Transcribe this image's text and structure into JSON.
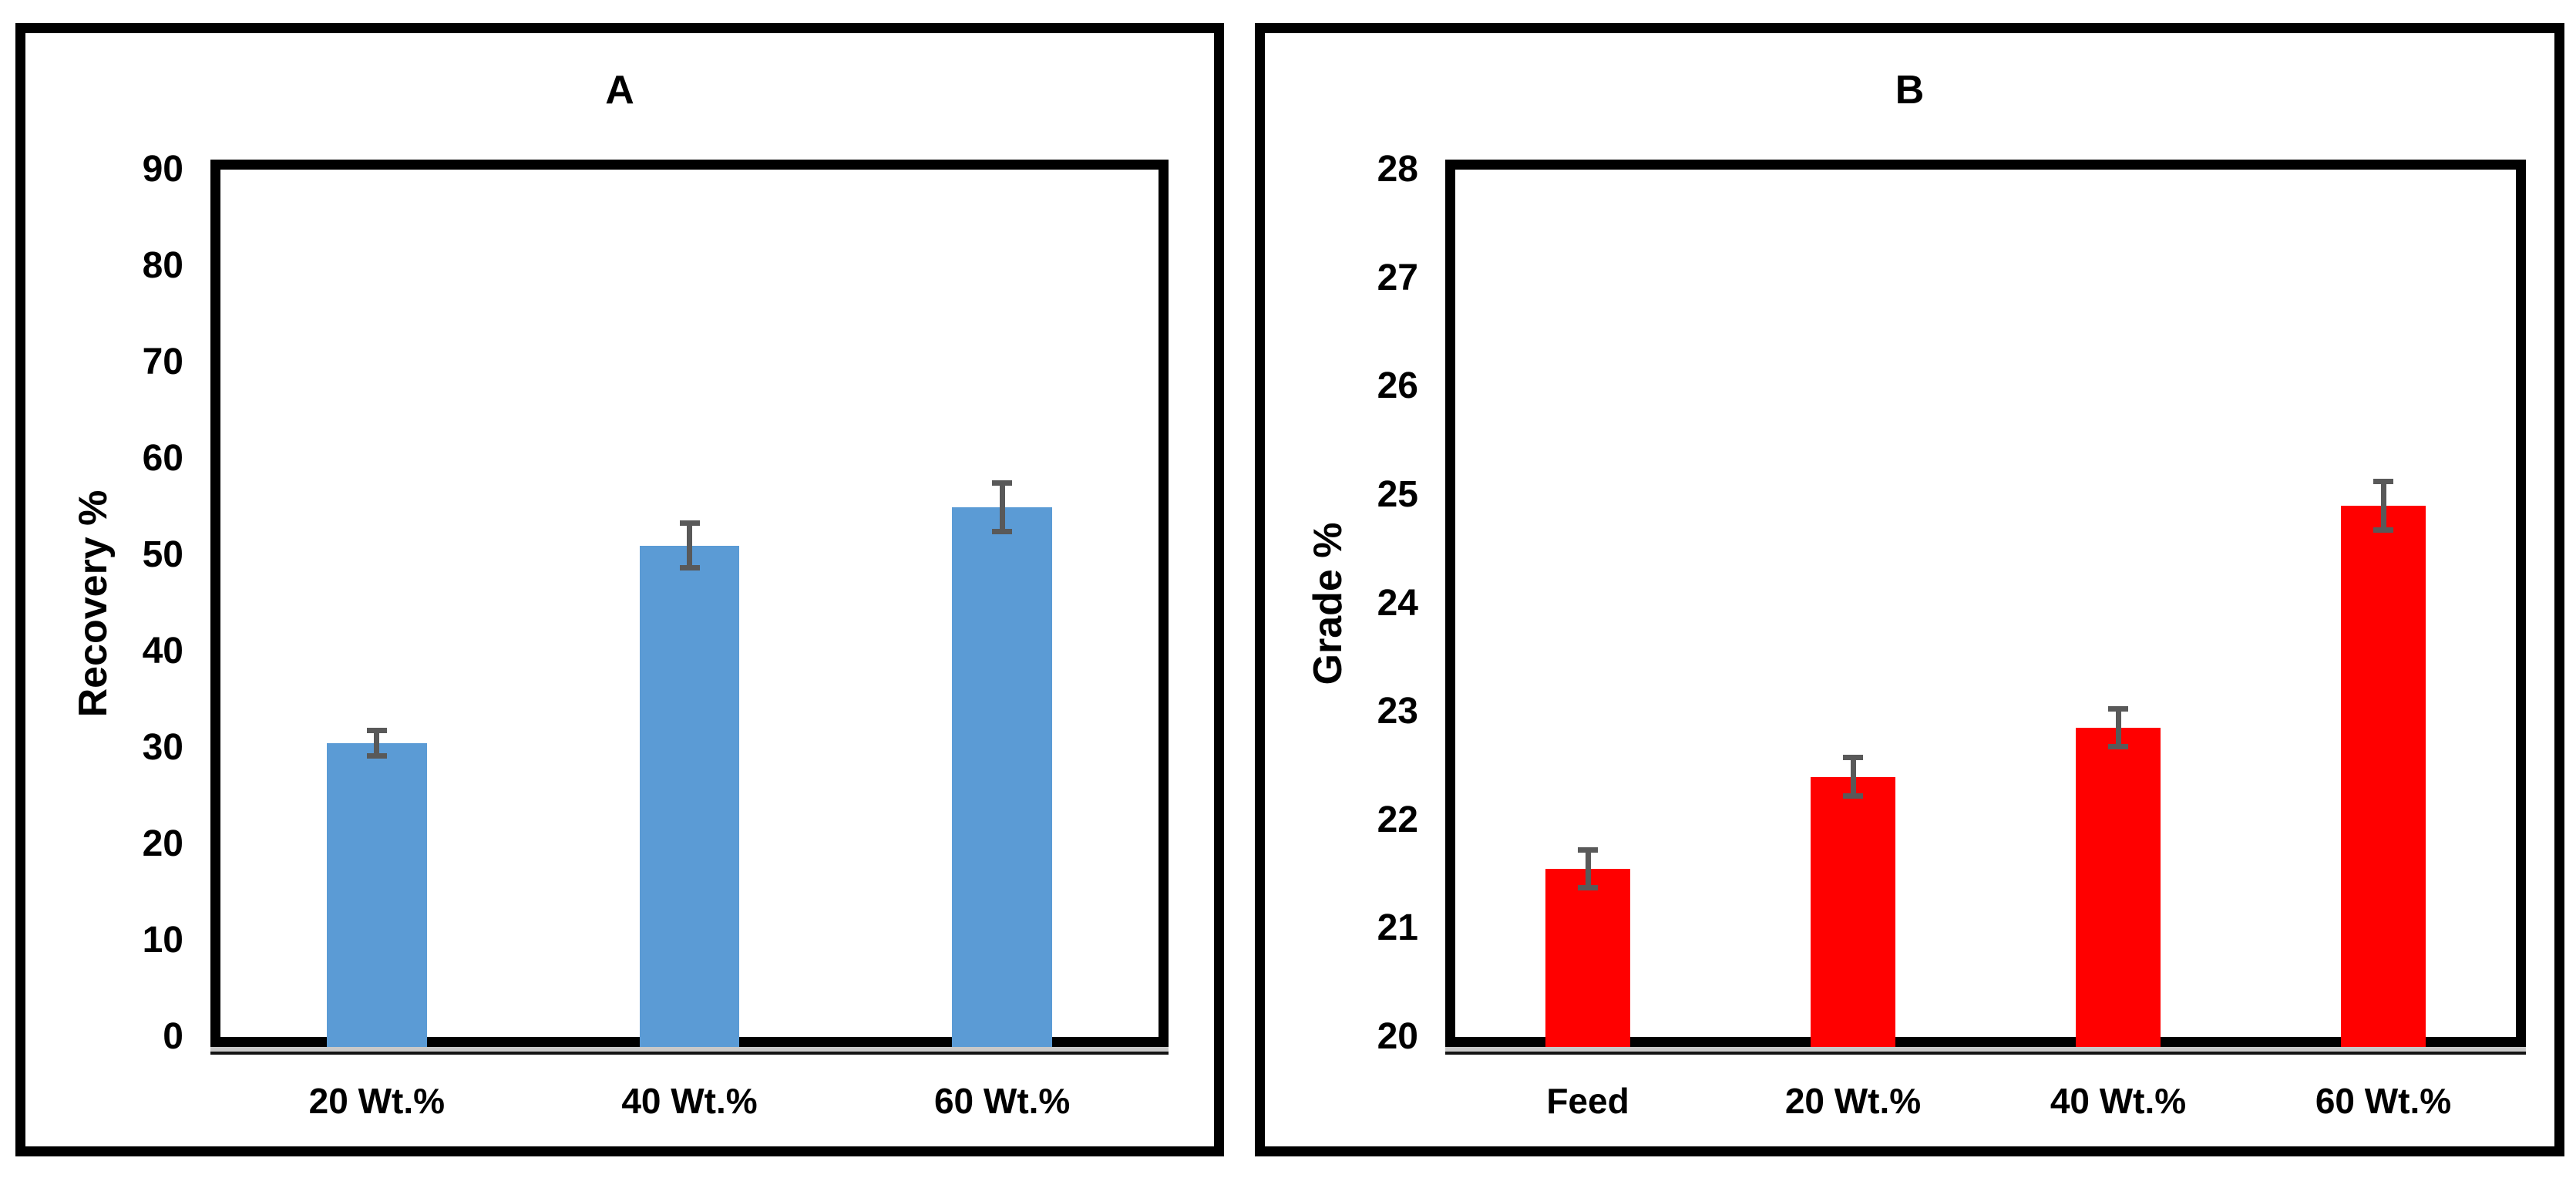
{
  "figure": {
    "background": "#ffffff",
    "panel_border_color": "#000000",
    "plot_border_color": "#000000",
    "baseline_shadow_color": "#c9c9c9"
  },
  "chart_data": [
    {
      "id": "A",
      "type": "bar",
      "title": "A",
      "ylabel": "Recovery %",
      "xlabel": "",
      "categories": [
        "20 Wt.%",
        "40 Wt.%",
        "60 Wt.%"
      ],
      "values": [
        30.5,
        51,
        55
      ],
      "error_bars": [
        1.6,
        2.6,
        2.8
      ],
      "ylim": [
        0,
        90
      ],
      "yticks": [
        0,
        10,
        20,
        30,
        40,
        50,
        60,
        70,
        80,
        90
      ],
      "bar_color": "#5B9BD5",
      "error_color": "#595959",
      "grid": false,
      "legend": null
    },
    {
      "id": "B",
      "type": "bar",
      "title": "B",
      "ylabel": "Grade %",
      "xlabel": "",
      "categories": [
        "Feed",
        "20 Wt.%",
        "40 Wt.%",
        "60 Wt.%"
      ],
      "values": [
        21.55,
        22.4,
        22.85,
        24.9
      ],
      "error_bars": [
        0.2,
        0.2,
        0.2,
        0.25
      ],
      "ylim": [
        20,
        28
      ],
      "yticks": [
        20,
        21,
        22,
        23,
        24,
        25,
        26,
        27,
        28
      ],
      "bar_color": "#FF0000",
      "error_color": "#595959",
      "grid": false,
      "legend": null
    }
  ]
}
